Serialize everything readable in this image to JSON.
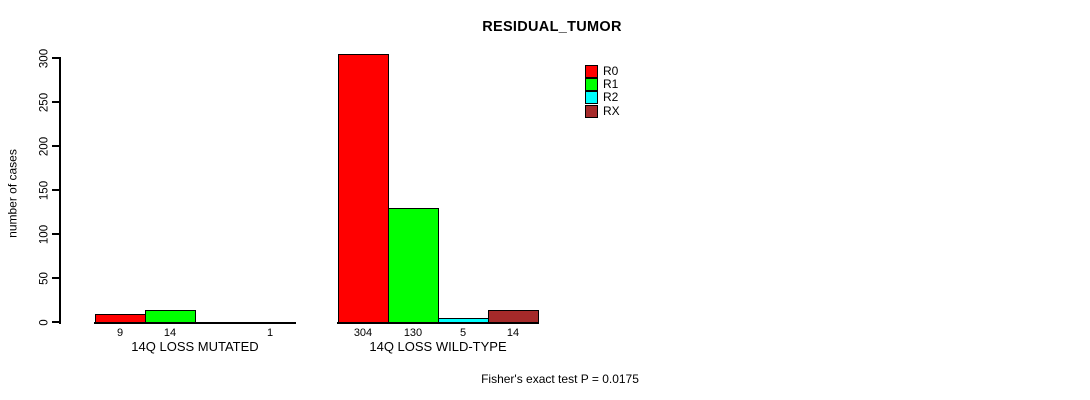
{
  "chart_data": {
    "type": "bar",
    "title": "RESIDUAL_TUMOR",
    "ylabel": "number of cases",
    "xlabel": "",
    "ylim": [
      0,
      300
    ],
    "yticks": [
      0,
      50,
      100,
      150,
      200,
      250,
      300
    ],
    "grid": false,
    "legend_position": "right-of-plot",
    "series": [
      {
        "name": "R0",
        "color": "#ff0000"
      },
      {
        "name": "R1",
        "color": "#00ff00"
      },
      {
        "name": "R2",
        "color": "#00ffff"
      },
      {
        "name": "RX",
        "color": "#a52a2a"
      }
    ],
    "groups": [
      {
        "label": "14Q LOSS MUTATED",
        "values": [
          9,
          14,
          0,
          1
        ],
        "count_labels": [
          "9",
          "14",
          "",
          "1"
        ]
      },
      {
        "label": "14Q LOSS WILD-TYPE",
        "values": [
          304,
          130,
          5,
          14
        ],
        "count_labels": [
          "304",
          "130",
          "5",
          "14"
        ]
      }
    ],
    "footnote": "Fisher's exact test P = 0.0175"
  }
}
